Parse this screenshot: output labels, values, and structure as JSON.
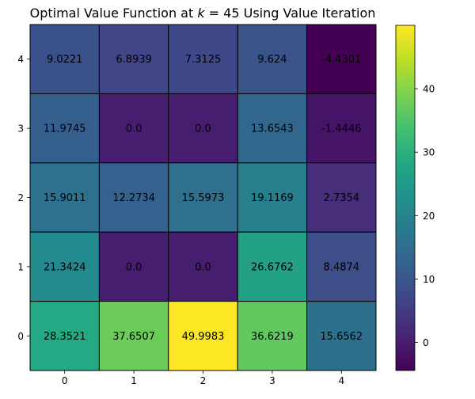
{
  "chart_data": {
    "type": "heatmap",
    "title": "Optimal Value Function at k = 45 Using Value Iteration",
    "title_parts": {
      "prefix": "Optimal Value Function at ",
      "var": "k",
      "eq": " = 45",
      "suffix": " Using Value Iteration"
    },
    "x_ticks": [
      "0",
      "1",
      "2",
      "3",
      "4"
    ],
    "y_ticks": [
      "4",
      "3",
      "2",
      "1",
      "0"
    ],
    "rows": [
      [
        9.0221,
        6.8939,
        7.3125,
        9.624,
        -4.4301
      ],
      [
        11.9745,
        0.0,
        0.0,
        13.6543,
        -1.4446
      ],
      [
        15.9011,
        12.2734,
        15.5973,
        19.1169,
        2.7354
      ],
      [
        21.3424,
        0.0,
        0.0,
        26.6762,
        8.4874
      ],
      [
        28.3521,
        37.6507,
        49.9983,
        36.6219,
        15.6562
      ]
    ],
    "labels": [
      [
        "9.0221",
        "6.8939",
        "7.3125",
        "9.624",
        "-4.4301"
      ],
      [
        "11.9745",
        "0.0",
        "0.0",
        "13.6543",
        "-1.4446"
      ],
      [
        "15.9011",
        "12.2734",
        "15.5973",
        "19.1169",
        "2.7354"
      ],
      [
        "21.3424",
        "0.0",
        "0.0",
        "26.6762",
        "8.4874"
      ],
      [
        "28.3521",
        "37.6507",
        "49.9983",
        "36.6219",
        "15.6562"
      ]
    ],
    "colorbar": {
      "min": -4.4301,
      "max": 49.9983,
      "ticks": [
        0,
        10,
        20,
        30,
        40
      ],
      "tick_labels": [
        "0",
        "10",
        "20",
        "30",
        "40"
      ]
    },
    "colormap": "viridis",
    "grid": true
  }
}
